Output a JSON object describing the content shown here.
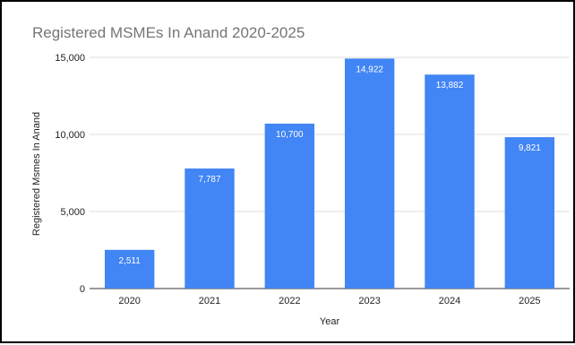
{
  "chart_data": {
    "type": "bar",
    "title": "Registered MSMEs In Anand 2020-2025",
    "xlabel": "Year",
    "ylabel": "Registered Msmes In Anand",
    "categories": [
      "2020",
      "2021",
      "2022",
      "2023",
      "2024",
      "2025"
    ],
    "values": [
      2511,
      7787,
      10700,
      14922,
      13882,
      9821
    ],
    "data_labels": [
      "2,511",
      "7,787",
      "10,700",
      "14,922",
      "13,882",
      "9,821"
    ],
    "ylim": [
      0,
      15000
    ],
    "yticks": [
      0,
      5000,
      10000,
      15000
    ],
    "ytick_labels": [
      "0",
      "5,000",
      "10,000",
      "15,000"
    ],
    "grid": true,
    "legend": "none",
    "bar_color": "#4285f4"
  }
}
